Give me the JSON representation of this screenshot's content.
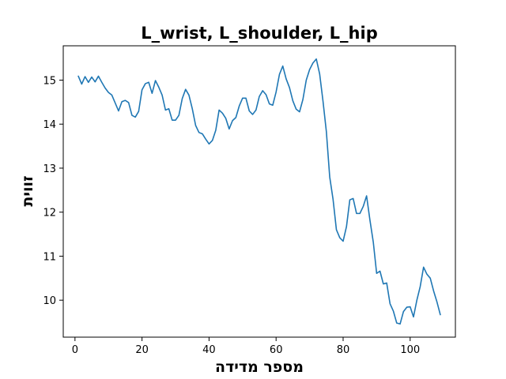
{
  "chart_data": {
    "type": "line",
    "title": "L_wrist, L_shoulder, L_hip",
    "xlabel": "מספר מדידה",
    "ylabel": "זווית",
    "xlim": [
      -3.5,
      113.5
    ],
    "ylim": [
      9.16,
      15.78
    ],
    "xticks": [
      0,
      20,
      40,
      60,
      80,
      100
    ],
    "yticks": [
      10,
      11,
      12,
      13,
      14,
      15
    ],
    "grid": false,
    "series": [
      {
        "color": "#1f77b4",
        "x": [
          1,
          2,
          3,
          4,
          5,
          6,
          7,
          8,
          9,
          10,
          11,
          12,
          13,
          14,
          15,
          16,
          17,
          18,
          19,
          20,
          21,
          22,
          23,
          24,
          25,
          26,
          27,
          28,
          29,
          30,
          31,
          32,
          33,
          34,
          35,
          36,
          37,
          38,
          39,
          40,
          41,
          42,
          43,
          44,
          45,
          46,
          47,
          48,
          49,
          50,
          51,
          52,
          53,
          54,
          55,
          56,
          57,
          58,
          59,
          60,
          61,
          62,
          63,
          64,
          65,
          66,
          67,
          68,
          69,
          70,
          71,
          72,
          73,
          74,
          75,
          76,
          77,
          78,
          79,
          80,
          81,
          82,
          83,
          84,
          85,
          86,
          87,
          88,
          89,
          90,
          91,
          92,
          93,
          94,
          95,
          96,
          97,
          98,
          99,
          100,
          101,
          102,
          103,
          104,
          105,
          106,
          107,
          108,
          109
        ],
        "y": [
          15.09,
          14.91,
          15.08,
          14.95,
          15.07,
          14.96,
          15.09,
          14.95,
          14.82,
          14.72,
          14.66,
          14.48,
          14.3,
          14.51,
          14.54,
          14.49,
          14.2,
          14.16,
          14.29,
          14.78,
          14.92,
          14.95,
          14.7,
          14.99,
          14.84,
          14.66,
          14.32,
          14.35,
          14.09,
          14.09,
          14.2,
          14.58,
          14.79,
          14.66,
          14.35,
          13.97,
          13.81,
          13.78,
          13.66,
          13.55,
          13.63,
          13.86,
          14.32,
          14.25,
          14.13,
          13.89,
          14.08,
          14.15,
          14.41,
          14.59,
          14.59,
          14.3,
          14.22,
          14.32,
          14.63,
          14.76,
          14.67,
          14.46,
          14.43,
          14.73,
          15.13,
          15.32,
          15.03,
          14.83,
          14.53,
          14.34,
          14.28,
          14.56,
          15.0,
          15.24,
          15.39,
          15.48,
          15.14,
          14.52,
          13.83,
          12.8,
          12.29,
          11.6,
          11.42,
          11.34,
          11.67,
          12.28,
          12.31,
          11.97,
          11.97,
          12.13,
          12.37,
          11.82,
          11.32,
          10.61,
          10.66,
          10.37,
          10.39,
          9.92,
          9.75,
          9.48,
          9.46,
          9.74,
          9.84,
          9.85,
          9.62,
          10.0,
          10.31,
          10.75,
          10.59,
          10.5,
          10.21,
          9.96,
          9.67
        ]
      }
    ]
  }
}
